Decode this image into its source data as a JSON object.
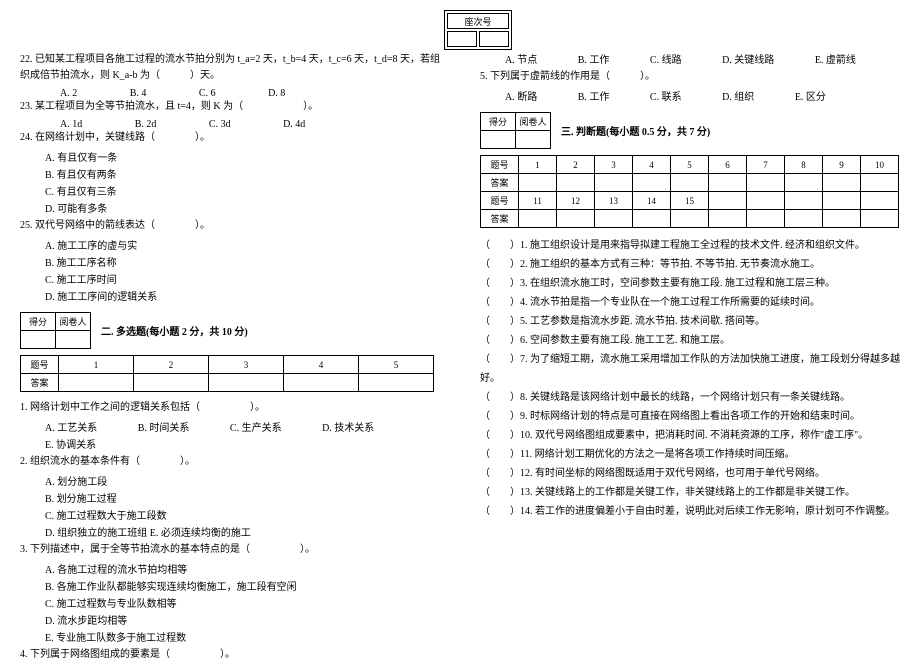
{
  "seat_label": "座次号",
  "left": {
    "q22": "22. 已知某工程项目各施工过程的流水节拍分别为 t_a=2 天，t_b=4 天，t_c=6 天，t_d=8 天，若组织成倍节拍流水，则 K_a-b 为（　　　）天。",
    "q22opts": [
      "A. 2",
      "B. 4",
      "C. 6",
      "D. 8"
    ],
    "q23": "23. 某工程项目为全等节拍流水，且 t=4，则 K 为（　　　　　　）。",
    "q23opts": [
      "A. 1d",
      "B. 2d",
      "C. 3d",
      "D. 4d"
    ],
    "q24": "24. 在网络计划中，关键线路（　　　　）。",
    "q24subs": [
      "A. 有且仅有一条",
      "B. 有且仅有两条",
      "C. 有且仅有三条",
      "D. 可能有多条"
    ],
    "q25": "25. 双代号网络中的箭线表达（　　　　）。",
    "q25subs": [
      "A. 施工工序的虚与实",
      "B. 施工工序名称",
      "C. 施工工序时间",
      "D. 施工工序间的逻辑关系"
    ],
    "sec2_title": "二. 多选题(每小题 2 分，共 10 分)",
    "score_cells": [
      "得分",
      "阅卷人"
    ],
    "ans_header": [
      "题号",
      "1",
      "2",
      "3",
      "4",
      "5"
    ],
    "ans_row": "答案",
    "mq1": "1. 网络计划中工作之间的逻辑关系包括（　　　　　）。",
    "mq1opts": [
      "A. 工艺关系",
      "B. 时间关系",
      "C. 生产关系",
      "D. 技术关系",
      "E. 协调关系"
    ],
    "mq2": "2. 组织流水的基本条件有（　　　　）。",
    "mq2subs": [
      "A. 划分施工段",
      "B. 划分施工过程",
      "C. 施工过程数大于施工段数",
      "D. 组织独立的施工班组 E. 必须连续均衡的施工"
    ],
    "mq3": "3. 下列描述中，属于全等节拍流水的基本特点的是（　　　　　）。",
    "mq3subs": [
      "A. 各施工过程的流水节拍均相等",
      "B. 各施工作业队都能够实现连续均衡施工，施工段有空闲",
      "C. 施工过程数与专业队数相等",
      "D. 流水步距均相等",
      "E. 专业施工队数多于施工过程数"
    ],
    "mq4": "4. 下列属于网络图组成的要素是（　　　　　）。"
  },
  "right": {
    "mq4opts": [
      "A. 节点",
      "B. 工作",
      "C. 线路",
      "D. 关键线路",
      "E. 虚箭线"
    ],
    "mq5": "5. 下列属于虚箭线的作用是（　　　）。",
    "mq5opts": [
      "A. 断路",
      "B. 工作",
      "C. 联系",
      "D. 组织",
      "E. 区分"
    ],
    "sec3_title": "三. 判断题(每小题 0.5 分，共 7 分)",
    "score_cells": [
      "得分",
      "阅卷人"
    ],
    "ans_h1": [
      "题号",
      "1",
      "2",
      "3",
      "4",
      "5",
      "6",
      "7",
      "8",
      "9",
      "10"
    ],
    "ans_r1": "答案",
    "ans_h2": [
      "题号",
      "11",
      "12",
      "13",
      "14",
      "15"
    ],
    "ans_r2": "答案",
    "judges": [
      "（　　）1. 施工组织设计是用来指导拟建工程施工全过程的技术文件. 经济和组织文件。",
      "（　　）2. 施工组织的基本方式有三种：等节拍. 不等节拍. 无节奏流水施工。",
      "（　　）3. 在组织流水施工时，空间参数主要有施工段. 施工过程和施工层三种。",
      "（　　）4. 流水节拍是指一个专业队在一个施工过程工作所需要的延续时间。",
      "（　　）5. 工艺参数是指流水步距. 流水节拍. 技术间歇. 搭间等。",
      "（　　）6. 空间参数主要有施工段. 施工工艺. 和施工层。",
      "（　　）7. 为了缩短工期，流水施工采用增加工作队的方法加快施工进度，施工段划分得越多越好。",
      "（　　）8. 关键线路是该网络计划中最长的线路，一个网络计划只有一条关键线路。",
      "（　　）9. 时标网络计划的特点是可直接在网络图上看出各项工作的开始和结束时间。",
      "（　　）10. 双代号网络图组成要素中，把消耗时间. 不消耗资源的工序，称作\"虚工序\"。",
      "（　　）11. 网络计划工期优化的方法之一是将各项工作持续时间压缩。",
      "（　　）12. 有时间坐标的网络图既适用于双代号网络，也可用于单代号网络。",
      "（　　）13. 关键线路上的工作都是关键工作，非关键线路上的工作都是非关键工作。",
      "（　　）14. 若工作的进度偏差小于自由时差，说明此对后续工作无影响，原计划可不作调整。"
    ]
  }
}
